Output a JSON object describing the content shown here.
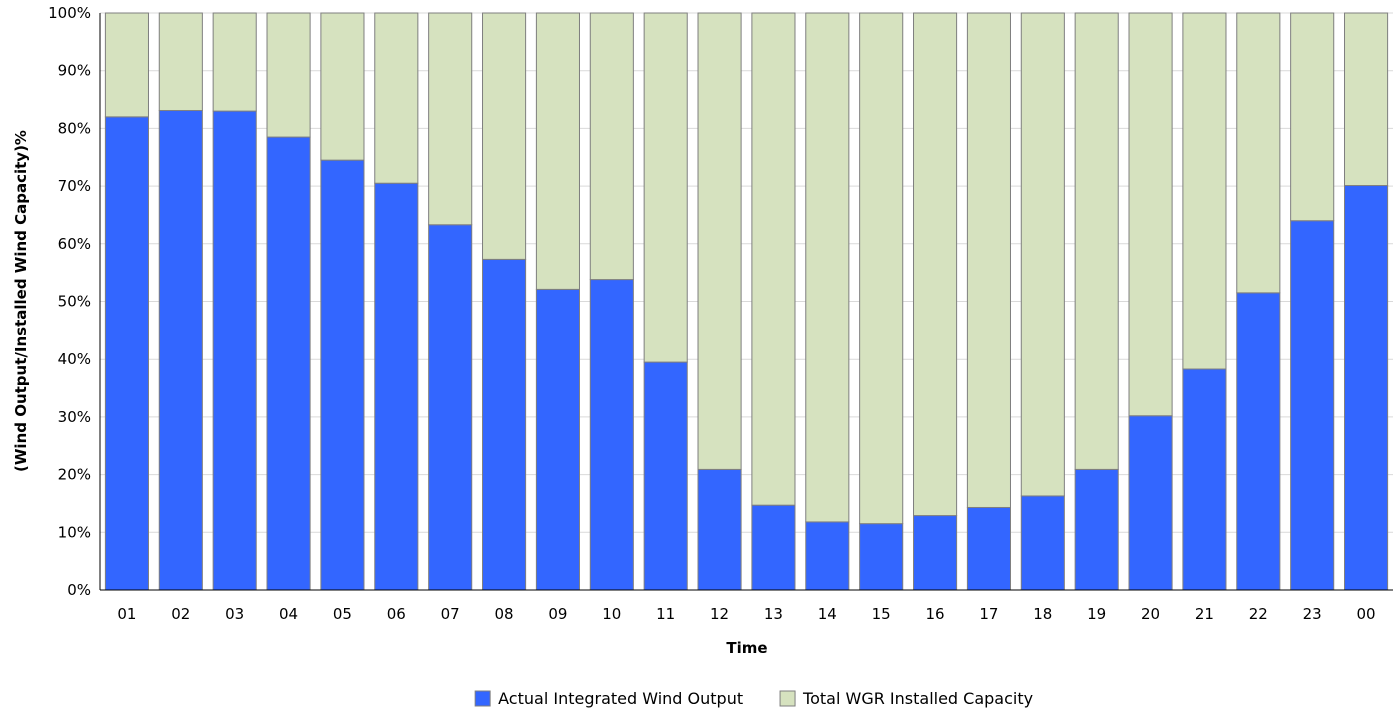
{
  "chart_data": {
    "type": "bar",
    "stacked": true,
    "normalized_percent": true,
    "xlabel": "Time",
    "ylabel": "(Wind Output/Installed Wind Capacity)%",
    "ylim": [
      0,
      100
    ],
    "yticks": [
      "0%",
      "10%",
      "20%",
      "30%",
      "40%",
      "50%",
      "60%",
      "70%",
      "80%",
      "90%",
      "100%"
    ],
    "categories": [
      "01",
      "02",
      "03",
      "04",
      "05",
      "06",
      "07",
      "08",
      "09",
      "10",
      "11",
      "12",
      "13",
      "14",
      "15",
      "16",
      "17",
      "18",
      "19",
      "20",
      "21",
      "22",
      "23",
      "00"
    ],
    "series": [
      {
        "name": "Actual Integrated Wind Output",
        "color": "#3366ff",
        "values": [
          82.0,
          83.1,
          83.0,
          78.5,
          74.5,
          70.5,
          63.3,
          57.3,
          52.1,
          53.8,
          39.5,
          20.9,
          14.7,
          11.8,
          11.5,
          12.9,
          14.3,
          16.3,
          20.9,
          30.2,
          38.3,
          51.5,
          64.0,
          70.1
        ]
      },
      {
        "name": "Total WGR Installed Capacity",
        "color": "#d6e2bf",
        "values": [
          18.0,
          16.9,
          17.0,
          21.5,
          25.5,
          29.5,
          36.7,
          42.7,
          47.9,
          46.2,
          60.5,
          79.1,
          85.3,
          88.2,
          88.5,
          87.1,
          85.7,
          83.7,
          79.1,
          69.8,
          61.7,
          48.5,
          36.0,
          29.9
        ]
      }
    ],
    "grid": true,
    "legend": "bottom-center",
    "colors": {
      "grid": "#d9d9d9",
      "axis": "#000000",
      "bar_outline": "#7f7f7f"
    }
  }
}
